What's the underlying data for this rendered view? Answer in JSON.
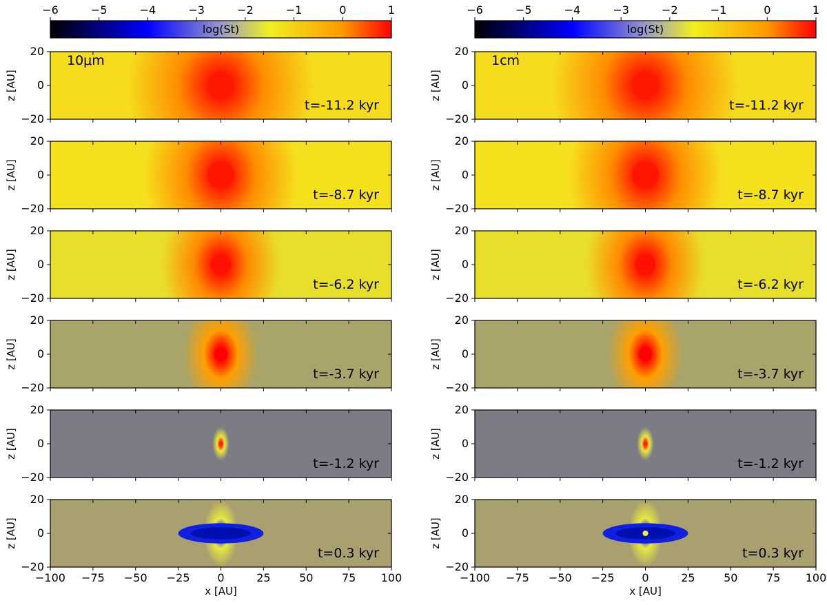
{
  "chart_data": {
    "type": "heatmap",
    "colorbar": {
      "label": "log(St)",
      "range": [
        -6,
        1
      ],
      "ticks": [
        -6,
        -5,
        -4,
        -3,
        -2,
        -1,
        0,
        1
      ],
      "tick_labels": [
        "−6",
        "−5",
        "−4",
        "−3",
        "−2",
        "−1",
        "0",
        "1"
      ],
      "colormap_stops": [
        {
          "value": -6,
          "color": "#000000"
        },
        {
          "value": -4,
          "color": "#0000ff"
        },
        {
          "value": -2.5,
          "color": "#9999cc"
        },
        {
          "value": -1.5,
          "color": "#f0f020"
        },
        {
          "value": 0,
          "color": "#ff9900"
        },
        {
          "value": 1,
          "color": "#ff0000"
        }
      ]
    },
    "xlabel": "x [AU]",
    "ylabel": "z [AU]",
    "xlim": [
      -100,
      100
    ],
    "ylim": [
      -20,
      20
    ],
    "xticks": [
      -100,
      -75,
      -50,
      -25,
      0,
      25,
      50,
      75,
      100
    ],
    "xtick_labels": [
      "−100",
      "−75",
      "−50",
      "−25",
      "0",
      "25",
      "50",
      "75",
      "100"
    ],
    "yticks": [
      -20,
      0,
      20
    ],
    "ytick_labels": [
      "−20",
      "0",
      "20"
    ],
    "columns": [
      {
        "grain_label": "10μm"
      },
      {
        "grain_label": "1cm"
      }
    ],
    "rows": [
      {
        "time_label": "t=-11.2 kyr",
        "background": "#f5dc1e",
        "core": "#ff1800",
        "mid": "#ff8c00",
        "core_r": 8,
        "mid_rx": 55,
        "mid_ry": 60
      },
      {
        "time_label": "t=-8.7 kyr",
        "background": "#f5e01e",
        "core": "#ff1500",
        "mid": "#ff8c00",
        "core_r": 8,
        "mid_rx": 45,
        "mid_ry": 55
      },
      {
        "time_label": "t=-6.2 kyr",
        "background": "#e8df2a",
        "core": "#ff1000",
        "mid": "#ff8a00",
        "core_r": 6,
        "mid_rx": 35,
        "mid_ry": 45
      },
      {
        "time_label": "t=-3.7 kyr",
        "background": "#a8a46a",
        "core": "#ff0000",
        "mid": "#ffa000",
        "core_r": 4,
        "mid_rx": 22,
        "mid_ry": 32
      },
      {
        "time_label": "t=-1.2 kyr",
        "background": "#7c7c84",
        "core": "#ff2000",
        "mid": "#e8e840",
        "core_r": 1.2,
        "mid_rx": 5,
        "mid_ry": 10
      },
      {
        "time_label": "t=0.3 kyr",
        "background": "#a8a06e",
        "core": "#1020ff",
        "mid": "#e8e840",
        "core_r": 3,
        "mid_rx": 10,
        "mid_ry": 20
      }
    ]
  }
}
